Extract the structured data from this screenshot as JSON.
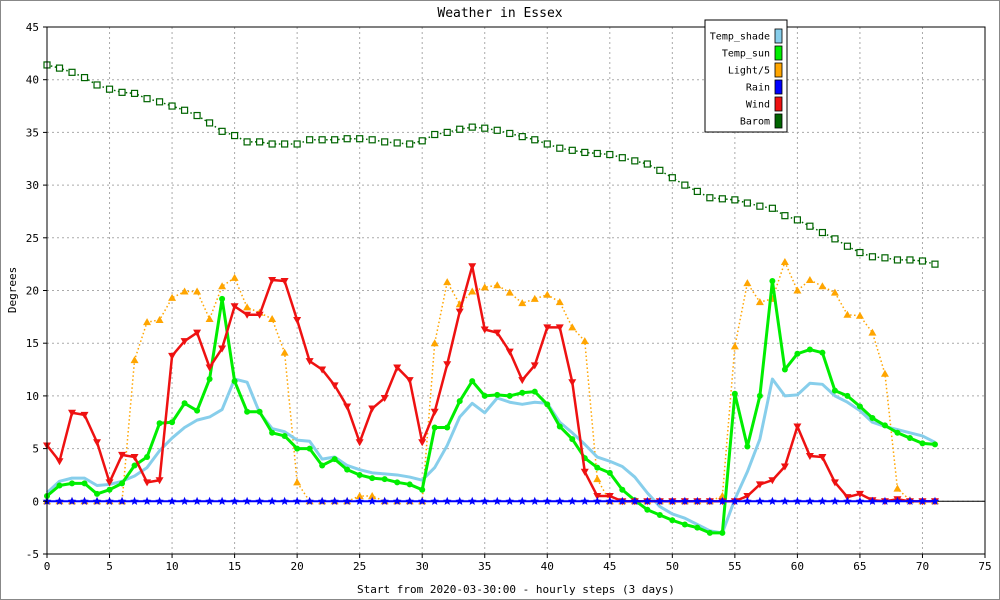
{
  "chart_data": {
    "type": "line",
    "title": "Weather in Essex",
    "xlabel": "Start from 2020-03-30:00 - hourly steps (3 days)",
    "ylabel": "Degrees",
    "xlim": [
      0,
      75
    ],
    "ylim": [
      -5,
      45
    ],
    "xticks": [
      0,
      5,
      10,
      15,
      20,
      25,
      30,
      35,
      40,
      45,
      50,
      55,
      60,
      65,
      70,
      75
    ],
    "yticks": [
      -5,
      0,
      5,
      10,
      15,
      20,
      25,
      30,
      35,
      40,
      45
    ],
    "grid": true,
    "legend_position": "top-right",
    "x": [
      0,
      1,
      2,
      3,
      4,
      5,
      6,
      7,
      8,
      9,
      10,
      11,
      12,
      13,
      14,
      15,
      16,
      17,
      18,
      19,
      20,
      21,
      22,
      23,
      24,
      25,
      26,
      27,
      28,
      29,
      30,
      31,
      32,
      33,
      34,
      35,
      36,
      37,
      38,
      39,
      40,
      41,
      42,
      43,
      44,
      45,
      46,
      47,
      48,
      49,
      50,
      51,
      52,
      53,
      54,
      55,
      56,
      57,
      58,
      59,
      60,
      61,
      62,
      63,
      64,
      65,
      66,
      67,
      68,
      69,
      70,
      71
    ],
    "series": [
      {
        "name": "Temp_shade",
        "color": "#87ceeb",
        "line": "solid",
        "width": 3,
        "marker": "none",
        "values": [
          0.8,
          1.9,
          2.2,
          2.2,
          1.5,
          1.6,
          1.9,
          2.4,
          3.2,
          4.8,
          6.0,
          7.0,
          7.7,
          8.0,
          8.7,
          11.6,
          11.3,
          8.4,
          6.9,
          6.6,
          5.8,
          5.7,
          4.0,
          4.2,
          3.4,
          3.0,
          2.7,
          2.6,
          2.5,
          2.3,
          2.0,
          3.2,
          5.3,
          8.0,
          9.3,
          8.4,
          9.8,
          9.4,
          9.2,
          9.4,
          9.3,
          7.5,
          6.5,
          5.4,
          4.2,
          3.8,
          3.3,
          2.3,
          0.8,
          -0.5,
          -1.2,
          -1.6,
          -2.2,
          -2.8,
          -3.0,
          0.2,
          2.8,
          5.9,
          11.6,
          10.0,
          10.1,
          11.2,
          11.1,
          10.0,
          9.4,
          8.6,
          7.5,
          7.1,
          6.8,
          6.5,
          6.2,
          5.6
        ]
      },
      {
        "name": "Temp_sun",
        "color": "#00ee00",
        "line": "solid",
        "width": 3,
        "marker": "circle",
        "values": [
          0.5,
          1.5,
          1.7,
          1.7,
          0.7,
          1.1,
          1.7,
          3.4,
          4.2,
          7.4,
          7.5,
          9.3,
          8.6,
          11.6,
          19.2,
          11.4,
          8.5,
          8.5,
          6.5,
          6.2,
          5.0,
          5.0,
          3.4,
          4.0,
          3.0,
          2.5,
          2.2,
          2.1,
          1.8,
          1.6,
          1.1,
          7.0,
          7.0,
          9.5,
          11.4,
          10.0,
          10.1,
          10.0,
          10.3,
          10.4,
          9.2,
          7.1,
          5.9,
          4.1,
          3.2,
          2.7,
          1.1,
          0.1,
          -0.8,
          -1.3,
          -1.8,
          -2.2,
          -2.5,
          -3.0,
          -3.0,
          10.2,
          5.2,
          10.0,
          20.9,
          12.5,
          14.0,
          14.4,
          14.1,
          10.5,
          10.0,
          9.0,
          7.9,
          7.2,
          6.5,
          6.0,
          5.5,
          5.4
        ]
      },
      {
        "name": "Light/5",
        "color": "#ffa500",
        "line": "dotted",
        "width": 1.5,
        "marker": "triangle-up",
        "values": [
          0,
          0,
          0,
          0,
          0,
          0,
          0,
          13.4,
          17.0,
          17.2,
          19.3,
          19.9,
          19.9,
          17.3,
          20.4,
          21.2,
          18.4,
          17.9,
          17.3,
          14.1,
          1.8,
          0,
          0,
          0,
          0,
          0.5,
          0.5,
          0,
          0,
          0,
          0,
          15.0,
          20.8,
          18.7,
          19.9,
          20.3,
          20.5,
          19.8,
          18.8,
          19.2,
          19.6,
          18.9,
          16.5,
          15.2,
          2.1,
          0,
          0,
          0,
          0,
          0,
          0,
          0,
          0,
          0,
          0.5,
          14.7,
          20.7,
          18.9,
          19.2,
          22.7,
          20.0,
          21.0,
          20.4,
          19.8,
          17.7,
          17.6,
          16.0,
          12.1,
          1.2,
          0.1,
          0,
          0
        ]
      },
      {
        "name": "Rain",
        "color": "#0000ff",
        "line": "solid",
        "width": 2,
        "marker": "star",
        "values": [
          0,
          0,
          0,
          0,
          0,
          0,
          0,
          0,
          0,
          0,
          0,
          0,
          0,
          0,
          0,
          0,
          0,
          0,
          0,
          0,
          0,
          0,
          0,
          0,
          0,
          0,
          0,
          0,
          0,
          0,
          0,
          0,
          0,
          0,
          0,
          0,
          0,
          0,
          0,
          0,
          0,
          0,
          0,
          0,
          0,
          0,
          0,
          0,
          0,
          0,
          0,
          0,
          0,
          0,
          0,
          0,
          0,
          0,
          0,
          0,
          0,
          0,
          0,
          0,
          0,
          0,
          0,
          0,
          0,
          0,
          0,
          0
        ]
      },
      {
        "name": "Wind",
        "color": "#ee1111",
        "line": "solid",
        "width": 2.5,
        "marker": "triangle-down",
        "values": [
          5.3,
          3.8,
          8.4,
          8.2,
          5.6,
          1.8,
          4.4,
          4.2,
          1.8,
          2.0,
          13.8,
          15.2,
          16.0,
          12.7,
          14.5,
          18.5,
          17.7,
          17.7,
          21.0,
          20.9,
          17.2,
          13.3,
          12.5,
          11.0,
          9.0,
          5.6,
          8.8,
          9.8,
          12.7,
          11.5,
          5.6,
          8.5,
          13.0,
          18.0,
          22.3,
          16.3,
          16.0,
          14.2,
          11.5,
          12.9,
          16.5,
          16.5,
          11.3,
          2.8,
          0.5,
          0.5,
          0,
          0,
          0,
          0,
          0,
          0,
          0,
          0,
          0,
          0,
          0.5,
          1.6,
          2.0,
          3.3,
          7.1,
          4.3,
          4.2,
          1.8,
          0.4,
          0.7,
          0.1,
          0,
          0.2,
          0,
          0,
          0
        ]
      },
      {
        "name": "Barom",
        "color": "#006400",
        "line": "dotted",
        "width": 1.5,
        "marker": "square",
        "values": [
          41.4,
          41.1,
          40.7,
          40.2,
          39.5,
          39.1,
          38.8,
          38.7,
          38.2,
          37.9,
          37.5,
          37.1,
          36.6,
          35.9,
          35.1,
          34.7,
          34.1,
          34.1,
          33.9,
          33.9,
          33.9,
          34.3,
          34.3,
          34.3,
          34.4,
          34.4,
          34.3,
          34.1,
          34.0,
          33.9,
          34.2,
          34.8,
          35.0,
          35.3,
          35.5,
          35.4,
          35.2,
          34.9,
          34.6,
          34.3,
          33.9,
          33.5,
          33.3,
          33.1,
          33.0,
          32.9,
          32.6,
          32.3,
          32.0,
          31.4,
          30.7,
          30.0,
          29.4,
          28.8,
          28.7,
          28.6,
          28.3,
          28.0,
          27.8,
          27.1,
          26.7,
          26.1,
          25.5,
          24.9,
          24.2,
          23.6,
          23.2,
          23.1,
          22.9,
          22.9,
          22.8,
          22.5
        ]
      }
    ]
  }
}
